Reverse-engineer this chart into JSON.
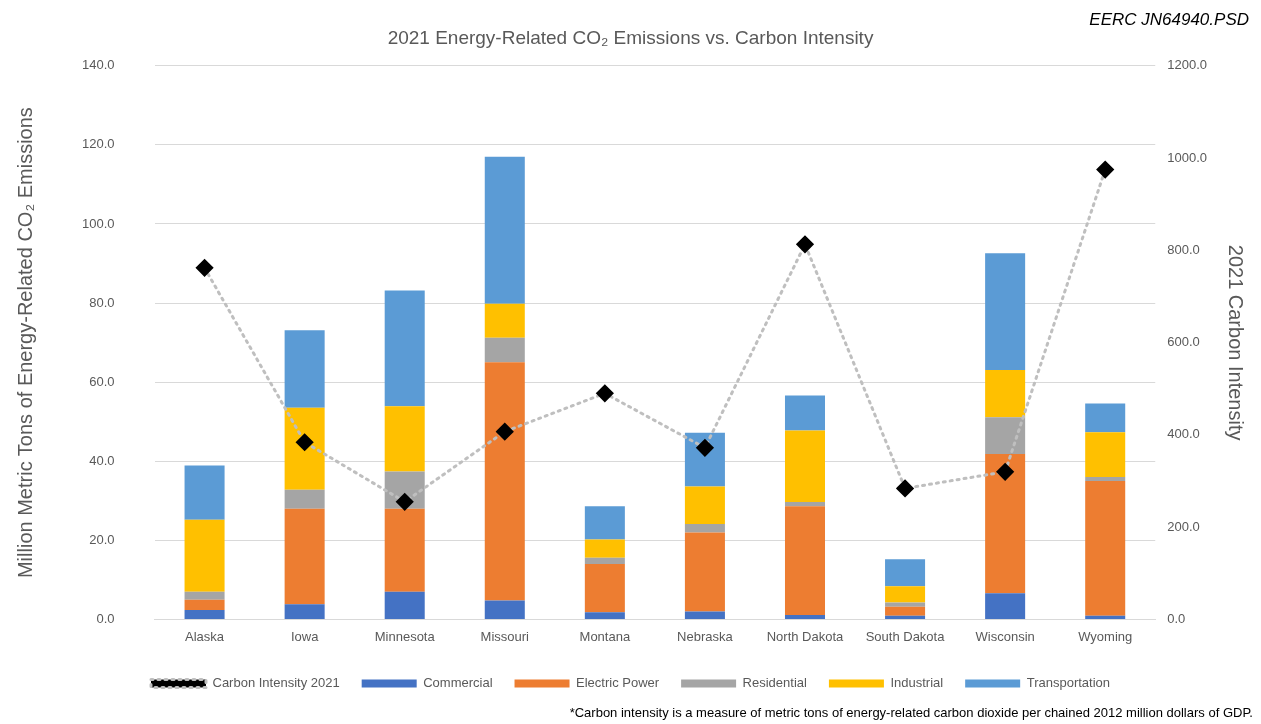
{
  "chart_data": {
    "type": "bar",
    "title": "2021 Energy-Related CO₂ Emissions vs. Carbon Intensity",
    "ylabel": "Million Metric Tons of Energy-Related CO₂ Emissions",
    "y2label": "2021 Carbon Intensity",
    "annotations": [
      "EERC JN64940.PSD",
      "*Carbon intensity is a measure of metric tons of energy-related carbon dioxide per chained 2012 million dollars of GDP."
    ],
    "categories": [
      "Alaska",
      "Iowa",
      "Minnesota",
      "Missouri",
      "Montana",
      "Nebraska",
      "North Dakota",
      "South Dakota",
      "Wisconsin",
      "Wyoming"
    ],
    "stacked": true,
    "series": [
      {
        "name": "Commercial",
        "color": "#4472c4",
        "values": [
          2.4,
          3.8,
          7.0,
          4.8,
          1.8,
          2.0,
          1.1,
          0.9,
          6.6,
          0.9
        ]
      },
      {
        "name": "Electric Power",
        "color": "#ed7d31",
        "values": [
          2.6,
          24.2,
          21.0,
          60.2,
          12.2,
          20.0,
          27.5,
          2.3,
          35.2,
          34.1
        ]
      },
      {
        "name": "Residential",
        "color": "#a5a5a5",
        "values": [
          2.0,
          4.8,
          9.4,
          6.2,
          1.6,
          2.1,
          1.1,
          1.1,
          9.3,
          1.0
        ]
      },
      {
        "name": "Industrial",
        "color": "#ffc000",
        "values": [
          18.2,
          20.7,
          16.5,
          8.6,
          4.6,
          9.5,
          18.1,
          4.1,
          12.0,
          11.3
        ]
      },
      {
        "name": "Transportation",
        "color": "#5b9bd5",
        "values": [
          13.7,
          19.6,
          29.3,
          37.2,
          8.4,
          13.6,
          8.8,
          6.8,
          29.5,
          7.3
        ]
      },
      {
        "name": "Carbon Intensity 2021",
        "type": "line",
        "axis": "y2",
        "color": "#000000",
        "marker": "diamond",
        "line_style": "dotted",
        "values": [
          762,
          384,
          255,
          407,
          490,
          372,
          813,
          284,
          320,
          975
        ]
      }
    ],
    "ylim": [
      0,
      140
    ],
    "yticks": [
      {
        "value": 0,
        "label": "0.0"
      },
      {
        "value": 20,
        "label": "20.0"
      },
      {
        "value": 40,
        "label": "40.0"
      },
      {
        "value": 60,
        "label": "60.0"
      },
      {
        "value": 80,
        "label": "80.0"
      },
      {
        "value": 100,
        "label": "100.0"
      },
      {
        "value": 120,
        "label": "120.0"
      },
      {
        "value": 140,
        "label": "140.0"
      }
    ],
    "y2lim": [
      0,
      1200
    ],
    "y2ticks": [
      {
        "value": 0,
        "label": "0.0"
      },
      {
        "value": 200,
        "label": "200.0"
      },
      {
        "value": 400,
        "label": "400.0"
      },
      {
        "value": 600,
        "label": "600.0"
      },
      {
        "value": 800,
        "label": "800.0"
      },
      {
        "value": 1000,
        "label": "1000.0"
      },
      {
        "value": 1200,
        "label": "1200.0"
      }
    ],
    "grid": "y",
    "legend": "bottom"
  }
}
